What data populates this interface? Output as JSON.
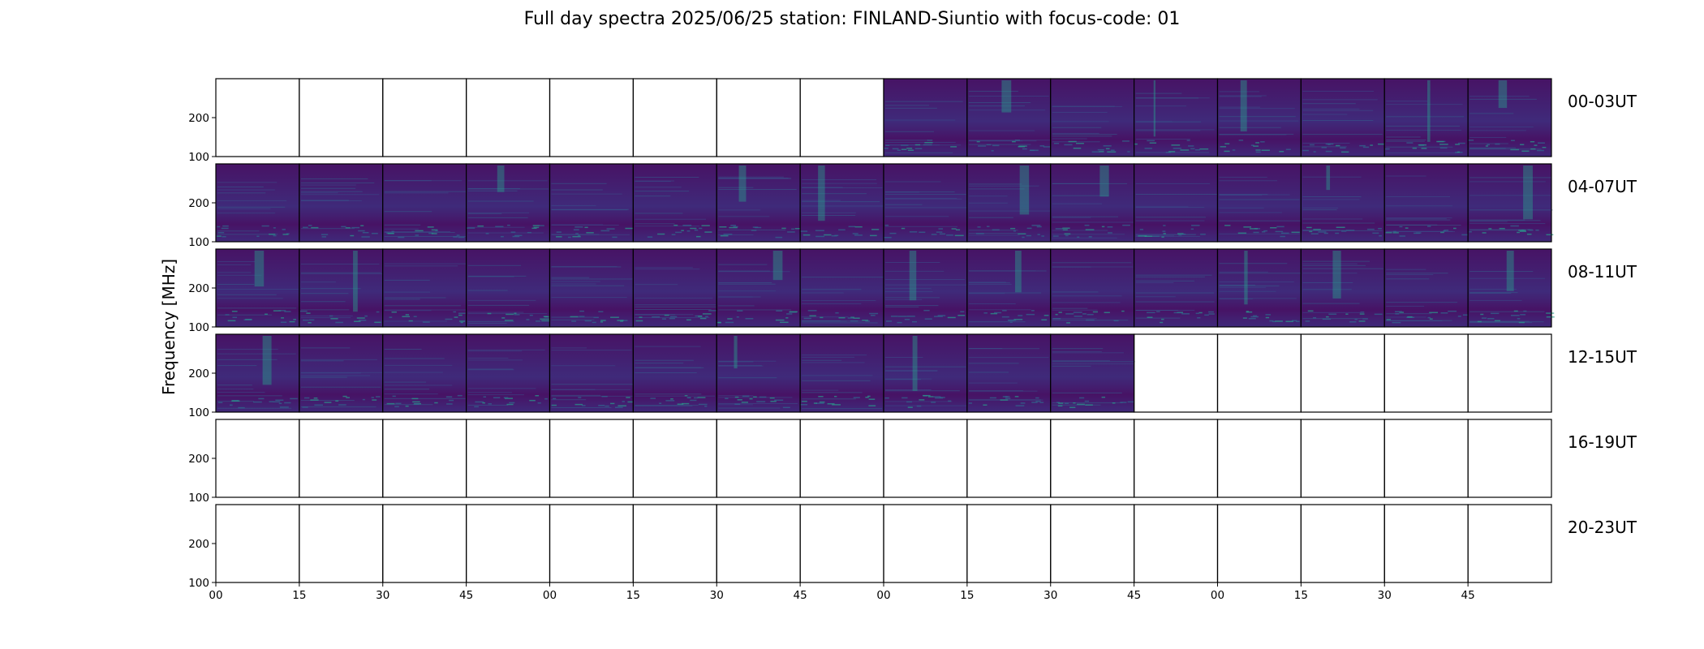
{
  "title": "Full day spectra 2025/06/25 station: FINLAND-Siuntio with focus-code: 01",
  "chart_data": {
    "type": "heatmap",
    "ylabel": "Frequency [MHz]",
    "xlabel": "",
    "ylim": [
      100,
      300
    ],
    "y_ticks": [
      "100",
      "200"
    ],
    "x_ticks": [
      "00",
      "15",
      "30",
      "45",
      "00",
      "15",
      "30",
      "45",
      "00",
      "15",
      "30",
      "45",
      "00",
      "15",
      "30",
      "45"
    ],
    "colormap": "viridis",
    "colors": {
      "background_low": "#471365",
      "background_mid": "#3f2a7a",
      "signal": "#2a9b8c",
      "signal_bright": "#3cbc75"
    },
    "rows": [
      {
        "label": "00-03UT",
        "panels_with_data": [
          8,
          9,
          10,
          11,
          12,
          13,
          14,
          15
        ]
      },
      {
        "label": "04-07UT",
        "panels_with_data": [
          0,
          1,
          2,
          3,
          4,
          5,
          6,
          7,
          8,
          9,
          10,
          11,
          12,
          13,
          14,
          15
        ]
      },
      {
        "label": "08-11UT",
        "panels_with_data": [
          0,
          1,
          2,
          3,
          4,
          5,
          6,
          7,
          8,
          9,
          10,
          11,
          12,
          13,
          14,
          15
        ]
      },
      {
        "label": "12-15UT",
        "panels_with_data": [
          0,
          1,
          2,
          3,
          4,
          5,
          6,
          7,
          8,
          9,
          10
        ]
      },
      {
        "label": "16-19UT",
        "panels_with_data": []
      },
      {
        "label": "20-23UT",
        "panels_with_data": []
      }
    ]
  }
}
